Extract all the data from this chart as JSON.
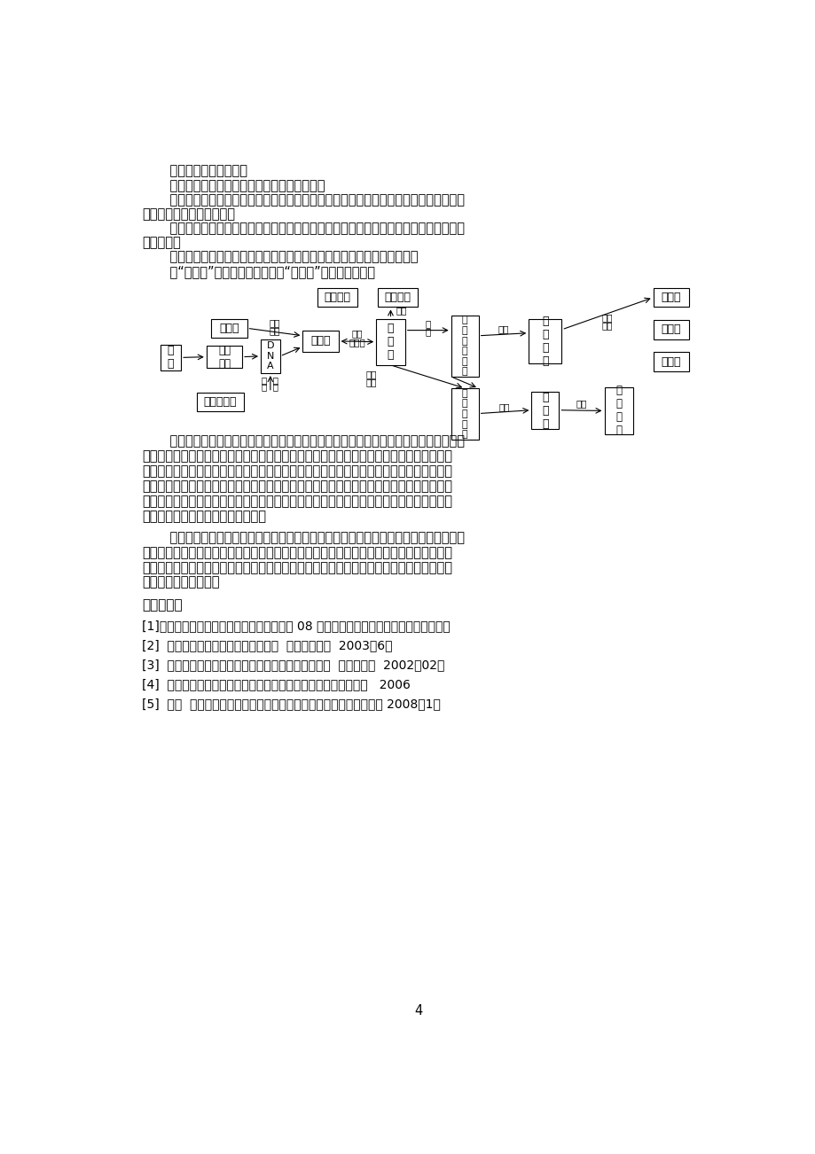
{
  "background_color": "#ffffff",
  "page_width": 9.2,
  "page_height": 13.02,
  "references_title": "参考文献：",
  "references": [
    "[1]张丹颐《诗词成语中的生物学知识拾贝》 08 年普通高中课程改革实验省教师远程培训",
    "[2]  李良《高中生物基本概念的教学》  学科教研教苑  2003（6）",
    "[3]  张洪荣《浅谈生物学基本概念教学中的设疑方法》  中学生物学  2002（02）",
    "[4]  修坤洪《概念图在生物教学中的运用》福建省长汀一中学网站   2006",
    "[5]  陈敏  《概念图在高中生物复习总结中应用的初探》宁德师专学报 2008（1）"
  ],
  "page_number": "4"
}
